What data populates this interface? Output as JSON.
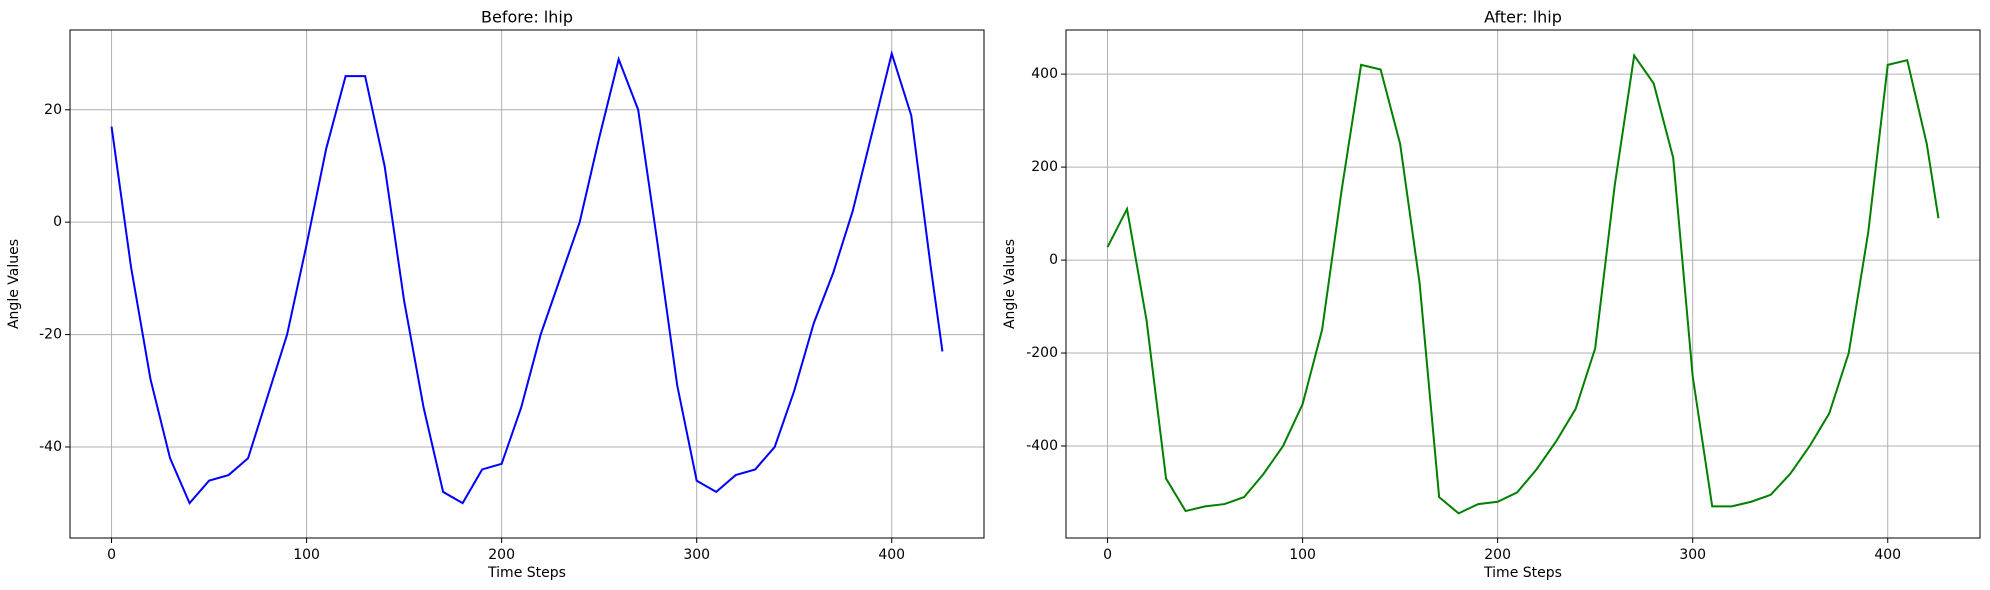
{
  "chart_data": [
    {
      "type": "line",
      "title": "Before: lhip",
      "x_label": "Time Steps",
      "y_label": "Angle Values",
      "x": [
        0,
        10,
        20,
        30,
        40,
        50,
        60,
        70,
        80,
        90,
        100,
        110,
        120,
        130,
        140,
        150,
        160,
        170,
        180,
        190,
        200,
        210,
        220,
        230,
        240,
        250,
        260,
        270,
        280,
        290,
        300,
        310,
        320,
        330,
        340,
        350,
        360,
        370,
        380,
        390,
        400,
        410,
        420,
        426
      ],
      "values": [
        17,
        -8,
        -28,
        -42,
        -50,
        -46,
        -45,
        -42,
        -31,
        -20,
        -4,
        13,
        26,
        26,
        10,
        -14,
        -33,
        -48,
        -50,
        -44,
        -43,
        -33,
        -20,
        -10,
        0,
        15,
        29,
        20,
        -4,
        -29,
        -46,
        -48,
        -45,
        -44,
        -40,
        -30,
        -18,
        -9,
        2,
        16,
        30,
        19,
        -8,
        -23
      ],
      "color": "#0000ff",
      "xlim": [
        -21.3,
        447.3
      ],
      "ylim": [
        -56.2,
        34.2
      ],
      "xticks": [
        0,
        100,
        200,
        300,
        400
      ],
      "yticks": [
        -40,
        -20,
        0,
        20
      ],
      "grid": true
    },
    {
      "type": "line",
      "title": "After: lhip",
      "x_label": "Time Steps",
      "y_label": "Angle Values",
      "x": [
        0,
        10,
        20,
        30,
        40,
        50,
        60,
        70,
        80,
        90,
        100,
        110,
        120,
        130,
        140,
        150,
        160,
        170,
        180,
        190,
        200,
        210,
        220,
        230,
        240,
        250,
        260,
        270,
        280,
        290,
        300,
        310,
        320,
        330,
        340,
        350,
        360,
        370,
        380,
        390,
        400,
        410,
        420,
        426
      ],
      "values": [
        28,
        110,
        -130,
        -470,
        -540,
        -530,
        -525,
        -510,
        -460,
        -400,
        -310,
        -150,
        150,
        420,
        410,
        250,
        -50,
        -510,
        -545,
        -525,
        -520,
        -500,
        -450,
        -390,
        -320,
        -190,
        160,
        440,
        380,
        220,
        -250,
        -530,
        -530,
        -520,
        -505,
        -460,
        -400,
        -330,
        -200,
        60,
        420,
        430,
        250,
        90
      ],
      "color": "#008000",
      "xlim": [
        -21.3,
        447.3
      ],
      "ylim": [
        -598,
        495
      ],
      "xticks": [
        0,
        100,
        200,
        300,
        400
      ],
      "yticks": [
        -400,
        -200,
        0,
        200,
        400
      ],
      "grid": true
    }
  ]
}
